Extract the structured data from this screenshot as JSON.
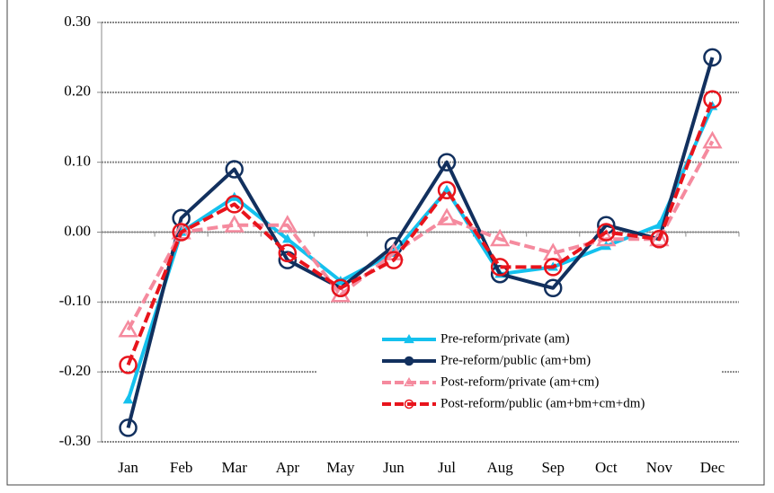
{
  "chart_data": {
    "type": "line",
    "categories": [
      "Jan",
      "Feb",
      "Mar",
      "Apr",
      "May",
      "Jun",
      "Jul",
      "Aug",
      "Sep",
      "Oct",
      "Nov",
      "Dec"
    ],
    "ylim": [
      -0.3,
      0.3
    ],
    "yticks": [
      {
        "value": 0.3,
        "label": "0.30"
      },
      {
        "value": 0.2,
        "label": "0.20"
      },
      {
        "value": 0.1,
        "label": "0.10"
      },
      {
        "value": 0,
        "label": "0.00"
      },
      {
        "value": -0.1,
        "label": "-0.10"
      },
      {
        "value": -0.2,
        "label": "-0.20"
      },
      {
        "value": -0.3,
        "label": "-0.30"
      }
    ],
    "grid": true,
    "legend": "lower-right",
    "series": [
      {
        "name": "Pre-reform/private (am)",
        "color": "#14c1ee",
        "marker": "triangle",
        "dashed": false,
        "values": [
          -0.24,
          0.0,
          0.05,
          -0.01,
          -0.07,
          -0.03,
          0.06,
          -0.06,
          -0.05,
          -0.02,
          0.01,
          0.18
        ]
      },
      {
        "name": "Pre-reform/public (am+bm)",
        "color": "#12305e",
        "marker": "circle",
        "dashed": false,
        "values": [
          -0.28,
          0.02,
          0.09,
          -0.04,
          -0.08,
          -0.02,
          0.1,
          -0.06,
          -0.08,
          0.01,
          -0.01,
          0.25
        ]
      },
      {
        "name": "Post-reform/private (am+cm)",
        "color": "#f58a9e",
        "marker": "triangle",
        "dashed": true,
        "values": [
          -0.14,
          0.0,
          0.01,
          0.01,
          -0.09,
          -0.03,
          0.02,
          -0.01,
          -0.03,
          -0.01,
          -0.01,
          0.13
        ]
      },
      {
        "name": "Post-reform/public (am+bm+cm+dm)",
        "color": "#e8141c",
        "marker": "circle",
        "dashed": true,
        "values": [
          -0.19,
          0.0,
          0.04,
          -0.03,
          -0.08,
          -0.04,
          0.06,
          -0.05,
          -0.05,
          0.0,
          -0.01,
          0.19
        ]
      }
    ]
  }
}
